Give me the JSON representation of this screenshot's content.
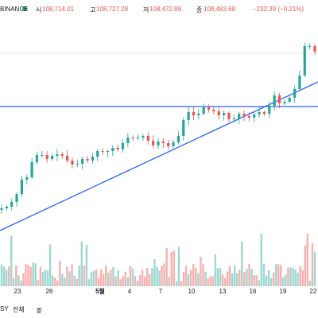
{
  "header": {
    "exchange": "BINANCE",
    "open_label": "시",
    "open": "108,714.01",
    "high_label": "고",
    "high": "108,727.28",
    "low_label": "저",
    "low": "108,472.88",
    "close_label": "종",
    "close": "108,483.68",
    "change": "−232.39 (−0.21%)"
  },
  "x_axis": {
    "ticks": [
      {
        "label": "23",
        "bold": false
      },
      {
        "label": "26",
        "bold": false
      },
      {
        "label": "5월",
        "bold": true
      },
      {
        "label": "4",
        "bold": false
      },
      {
        "label": "7",
        "bold": false
      },
      {
        "label": "10",
        "bold": false
      },
      {
        "label": "13",
        "bold": false
      },
      {
        "label": "16",
        "bold": false
      },
      {
        "label": "19",
        "bold": false
      },
      {
        "label": "22",
        "bold": false
      }
    ]
  },
  "bottom_bar": {
    "range_fragment": "SY",
    "range_all": "전체",
    "compare_glyph": "ङ"
  },
  "colors": {
    "up": "#26a69a",
    "down": "#ef5350",
    "trendline": "#2962ff",
    "horizontal_line": "#2962ff",
    "price_text": "#ef5350"
  },
  "chart_data": {
    "type": "candlestick",
    "symbol_exchange": "BINANCE",
    "ohlc_last": {
      "open": 108714.01,
      "high": 108727.28,
      "low": 108472.88,
      "close": 108483.68,
      "change": -232.39,
      "change_pct": -0.21
    },
    "x_tick_labels": [
      "23",
      "26",
      "5월",
      "4",
      "7",
      "10",
      "13",
      "16",
      "19",
      "22"
    ],
    "note_closes_visual_index": [
      8,
      10,
      16,
      26,
      44,
      47,
      66,
      75,
      75,
      70,
      74,
      76,
      74,
      68,
      63,
      64,
      70,
      68,
      73,
      80,
      79,
      80,
      84,
      82,
      90,
      97,
      96,
      97,
      99,
      93,
      87,
      92,
      90,
      86,
      91,
      99,
      119,
      129,
      125,
      127,
      135,
      132,
      130,
      125,
      128,
      120,
      121,
      127,
      124,
      122,
      126,
      129,
      127,
      137,
      150,
      140,
      142,
      147,
      158,
      175,
      212,
      212,
      205
    ]
  }
}
